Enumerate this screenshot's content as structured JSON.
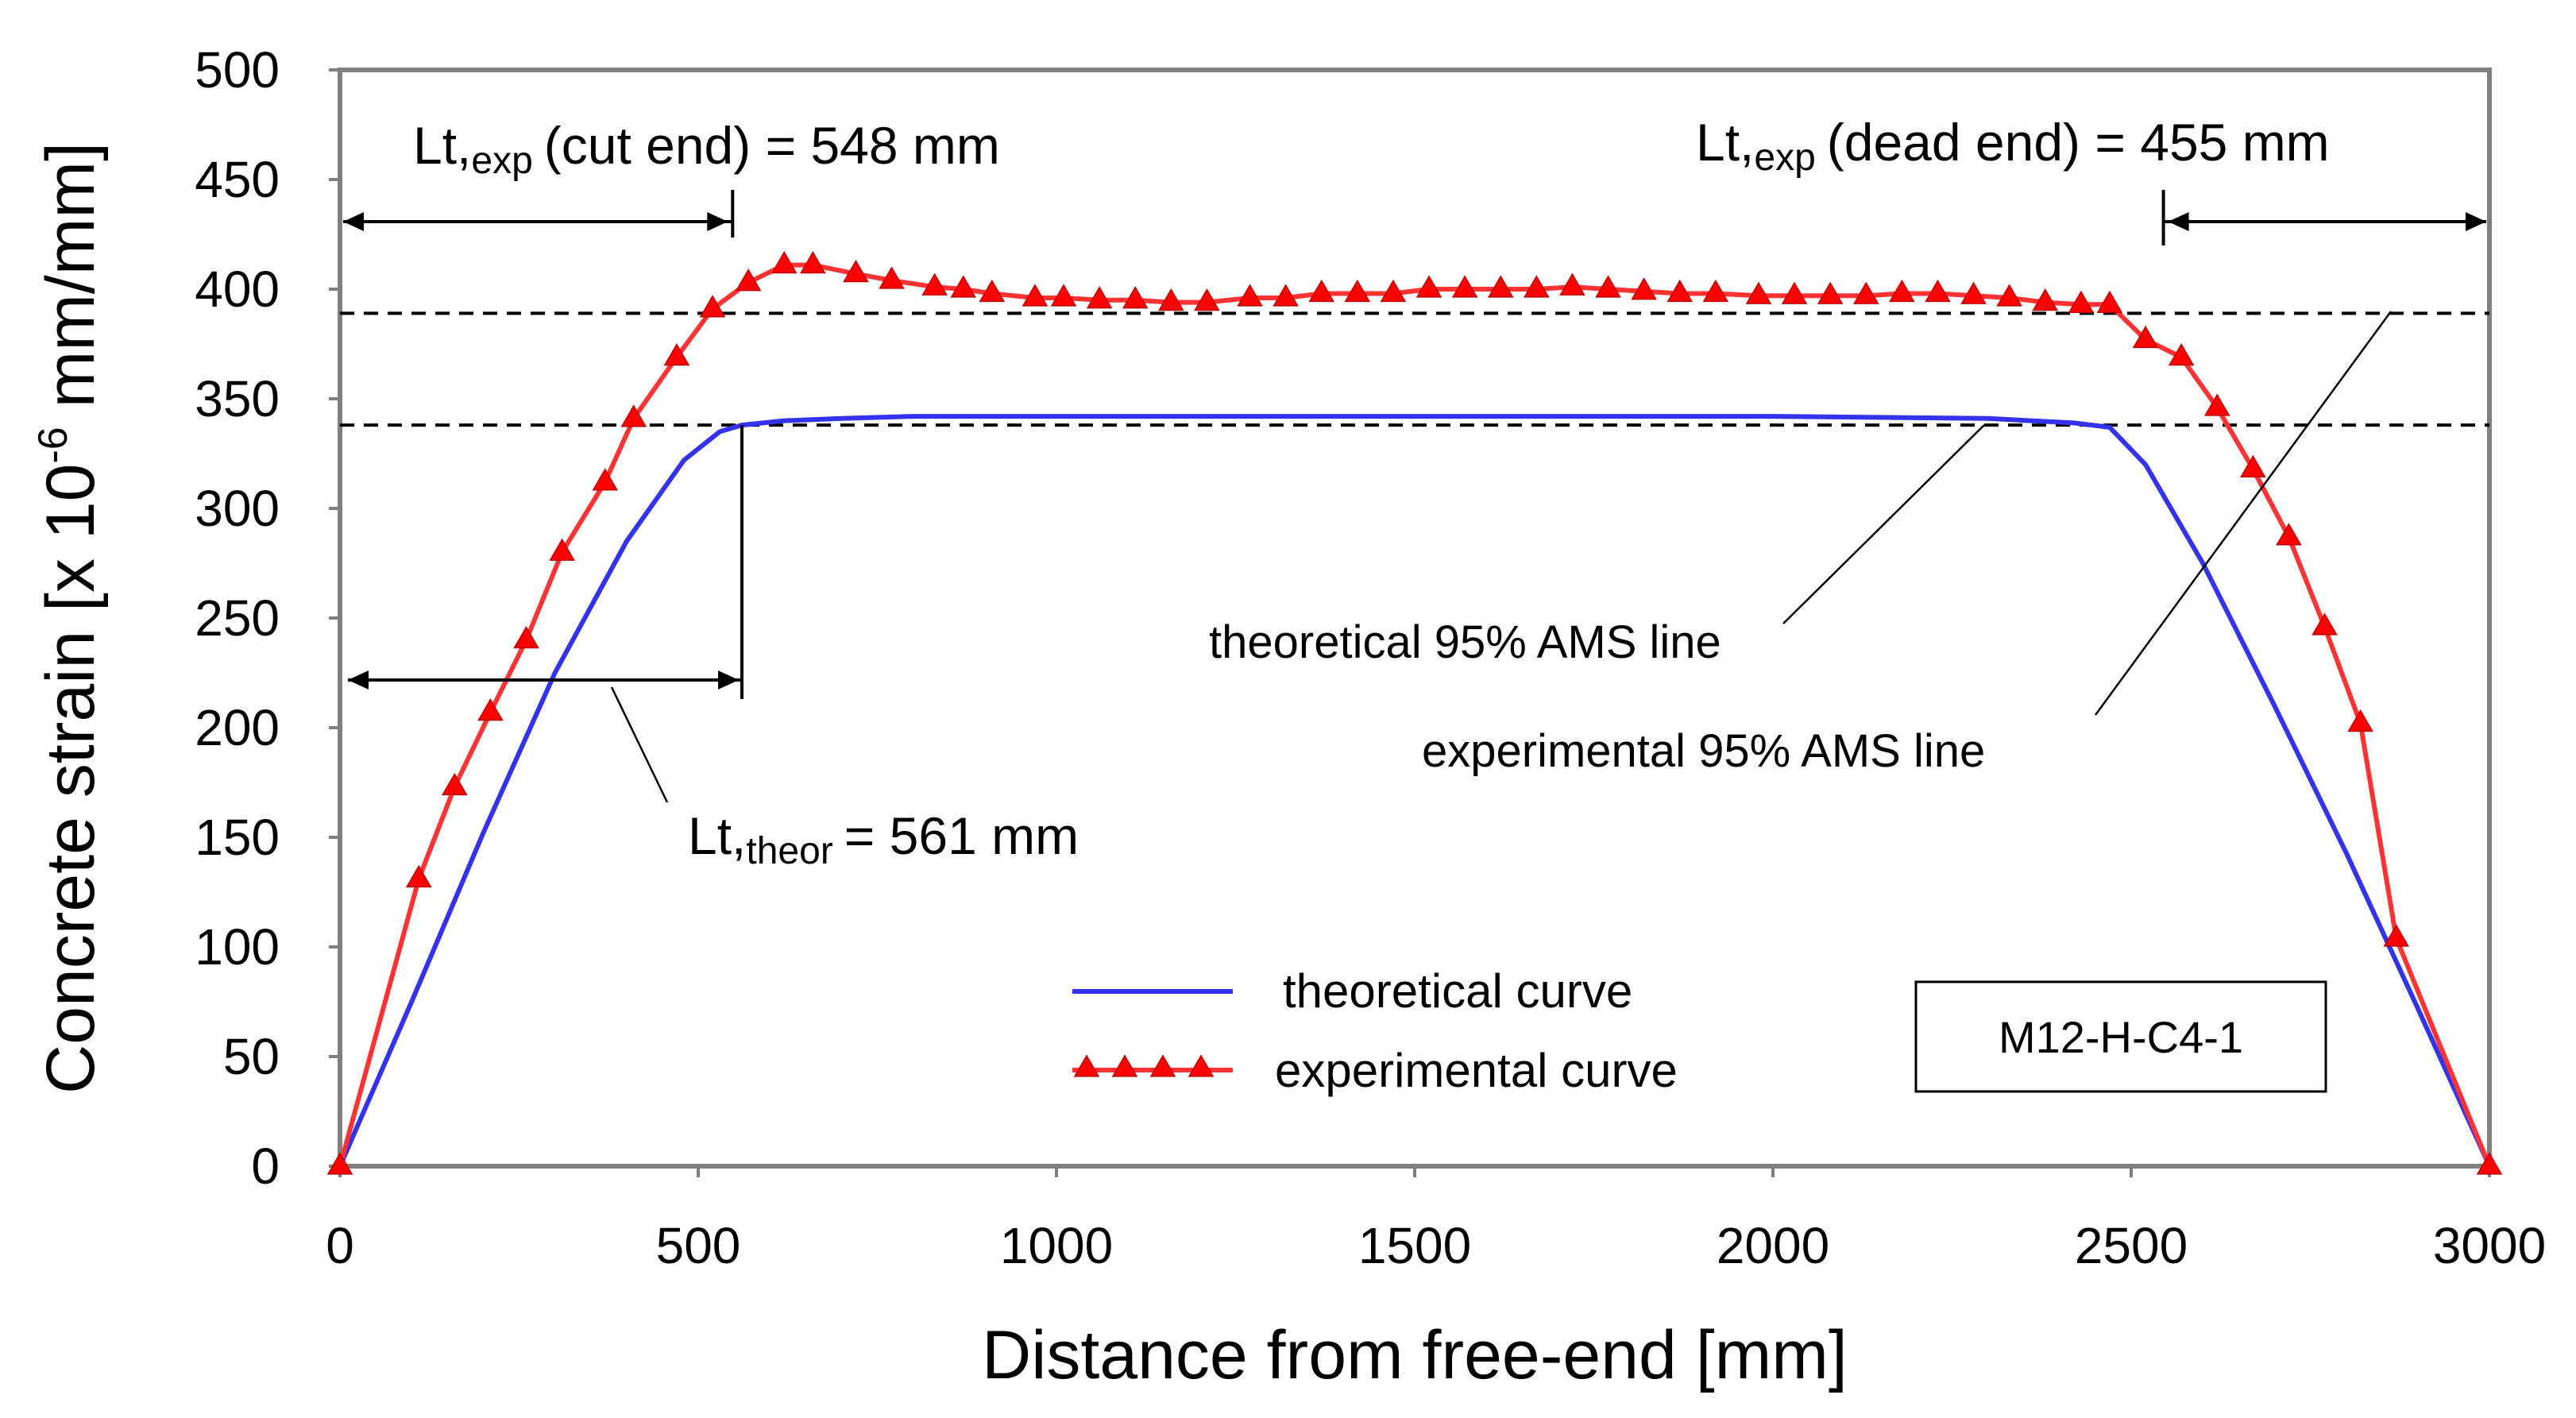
{
  "chart_data": {
    "type": "line",
    "xlabel": "Distance from free-end  [mm]",
    "ylabel_main": "Concrete strain  [x 10",
    "ylabel_exp": "-6",
    "ylabel_tail": " mm/mm]",
    "xlim": [
      0,
      3000
    ],
    "ylim": [
      0,
      500
    ],
    "xticks": [
      0,
      500,
      1000,
      1500,
      2000,
      2500,
      3000
    ],
    "yticks": [
      0,
      50,
      100,
      150,
      200,
      250,
      300,
      350,
      400,
      450,
      500
    ],
    "grid": false,
    "legend": [
      {
        "label": "theoretical  curve",
        "color": "#3333ee"
      },
      {
        "label": "experimental  curve",
        "color": "#ff3333",
        "marker": "triangle",
        "marker_color": "#ff0000"
      }
    ],
    "specimen_label": "M12-H-C4-1",
    "series": [
      {
        "name": "theoretical curve",
        "color": "#3333ee",
        "x": [
          0,
          100,
          200,
          300,
          400,
          480,
          530,
          561,
          620,
          700,
          800,
          1000,
          1500,
          2000,
          2300,
          2420,
          2470,
          2520,
          2600,
          2700,
          2800,
          2900,
          3000
        ],
        "y": [
          0,
          75,
          152,
          225,
          285,
          322,
          335,
          338,
          340,
          341,
          342,
          342,
          342,
          342,
          341,
          339,
          337,
          320,
          275,
          210,
          143,
          72,
          0
        ]
      },
      {
        "name": "experimental curve",
        "color": "#ff3333",
        "marker_color": "#ff0000",
        "x": [
          0,
          110,
          160,
          210,
          260,
          310,
          370,
          410,
          470,
          520,
          570,
          620,
          660,
          720,
          770,
          830,
          870,
          910,
          970,
          1010,
          1060,
          1110,
          1160,
          1210,
          1270,
          1320,
          1370,
          1420,
          1470,
          1520,
          1570,
          1620,
          1670,
          1720,
          1770,
          1820,
          1870,
          1920,
          1980,
          2030,
          2080,
          2130,
          2180,
          2230,
          2280,
          2330,
          2380,
          2430,
          2470,
          2520,
          2570,
          2620,
          2670,
          2720,
          2770,
          2820,
          2870,
          3000
        ],
        "y": [
          0,
          131,
          173,
          207,
          240,
          280,
          312,
          341,
          369,
          391,
          403,
          411,
          411,
          407,
          404,
          401,
          400,
          398,
          396,
          396,
          395,
          395,
          394,
          394,
          396,
          396,
          398,
          398,
          398,
          400,
          400,
          400,
          400,
          401,
          400,
          399,
          398,
          398,
          397,
          397,
          397,
          397,
          398,
          398,
          397,
          396,
          394,
          393,
          393,
          377,
          369,
          346,
          318,
          287,
          246,
          202,
          104,
          0
        ]
      }
    ],
    "reference_lines": [
      {
        "name": "experimental 95% AMS line",
        "y": 389
      },
      {
        "name": "theoretical 95% AMS line",
        "y": 338
      }
    ],
    "annotations": {
      "lt_exp_cut": {
        "prefix": "Lt,",
        "sub": "exp",
        "rest": "(cut end) = 548 mm",
        "from": 0,
        "to": 548
      },
      "lt_exp_dead": {
        "prefix": "Lt,",
        "sub": "exp",
        "rest": "(dead end) = 455 mm",
        "from": 2545,
        "to": 3000
      },
      "lt_theor": {
        "prefix": "Lt,",
        "sub": "theor",
        "rest": "= 561 mm",
        "from": 0,
        "to": 561
      },
      "theor_ams_label": "theoretical 95% AMS line",
      "exp_ams_label": "experimental 95% AMS line"
    }
  }
}
